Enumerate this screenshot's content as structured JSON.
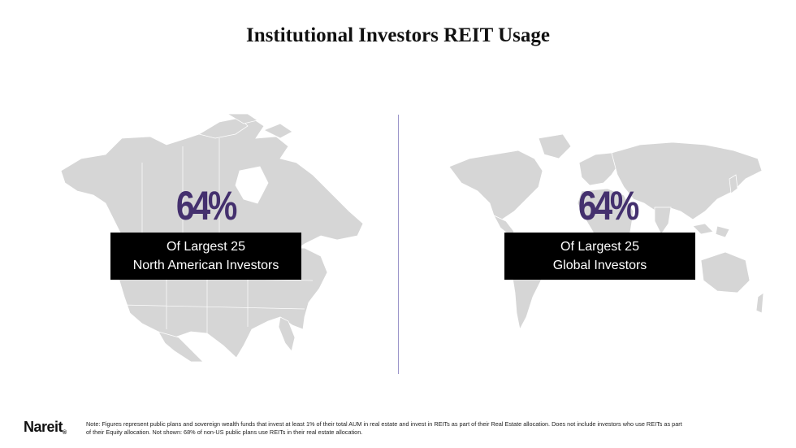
{
  "title": "Institutional Investors REIT Usage",
  "left_panel": {
    "percent": "64%",
    "label_line1": "Of Largest 25",
    "label_line2": "North American Investors"
  },
  "right_panel": {
    "percent": "64%",
    "label_line1": "Of Largest 25",
    "label_line2": "Global Investors"
  },
  "footer": {
    "logo": "Nareit",
    "logo_mark": "®",
    "note_line1": "Note: Figures represent public plans and sovereign wealth funds that invest at least 1% of their total AUM in real estate and invest in REITs  as part of their Real Estate allocation. Does not include investors who use REITs as part",
    "note_line2": "of their Equity allocation.  Not shown: 68% of non-US public plans use REITs  in their real estate allocation."
  },
  "colors": {
    "accent": "#44306e",
    "map_fill": "#d6d6d6",
    "label_box": "#000000",
    "divider": "#9b95c9"
  }
}
